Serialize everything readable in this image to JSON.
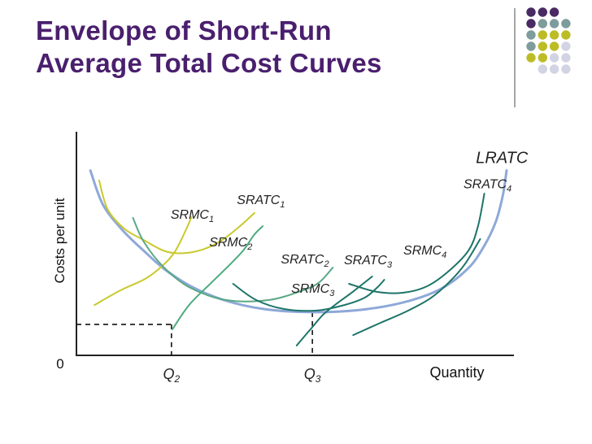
{
  "slide": {
    "title_line1": "Envelope of Short-Run",
    "title_line2": "Average Total Cost Curves"
  },
  "decoration": {
    "dot_grid_name": "dot-grid-decoration",
    "colors": {
      "purple": "#4a2a63",
      "teal": "#7e9c9c",
      "olive": "#bcbd26",
      "gray": "#d2d4e4"
    }
  },
  "chart_data": {
    "type": "line",
    "title": "",
    "ylabel": "Costs per unit",
    "xlabel": "Quantity",
    "origin_label": "0",
    "xlim": [
      0,
      100
    ],
    "ylim": [
      0,
      100
    ],
    "x_ticks": [
      {
        "main": "Q",
        "sub": "2",
        "x": 20.5
      },
      {
        "main": "Q",
        "sub": "3",
        "x": 50.9
      }
    ],
    "dashed_guides": [
      {
        "name": "q2-guide",
        "x": 20.5,
        "y": 13.9
      },
      {
        "name": "q3-guide",
        "x": 50.9,
        "y": 19.4
      }
    ],
    "series": [
      {
        "name": "LRATC",
        "color": "#8ea8d8",
        "width": 3,
        "points": [
          [
            3.0,
            83.0
          ],
          [
            5.7,
            67.7
          ],
          [
            9.9,
            56.3
          ],
          [
            14.8,
            46.4
          ],
          [
            19.0,
            38.7
          ],
          [
            24.7,
            31.0
          ],
          [
            31.8,
            24.8
          ],
          [
            40.4,
            20.8
          ],
          [
            50.9,
            19.4
          ],
          [
            61.2,
            20.4
          ],
          [
            70.4,
            23.7
          ],
          [
            78.4,
            29.6
          ],
          [
            84.5,
            39.0
          ],
          [
            88.1,
            49.6
          ],
          [
            90.5,
            60.2
          ],
          [
            92.0,
            71.9
          ],
          [
            92.8,
            83.0
          ]
        ]
      },
      {
        "name": "SRATC",
        "sub": "1",
        "color": "#c9c92e",
        "width": 2,
        "points": [
          [
            4.9,
            78.5
          ],
          [
            6.7,
            65.7
          ],
          [
            10.3,
            56.9
          ],
          [
            14.5,
            51.8
          ],
          [
            19.7,
            46.4
          ],
          [
            25.2,
            46.4
          ],
          [
            30.4,
            50.4
          ],
          [
            34.9,
            57.3
          ],
          [
            38.4,
            63.9
          ]
        ]
      },
      {
        "name": "SRMC",
        "sub": "1",
        "color": "#c9c92e",
        "width": 2,
        "points": [
          [
            3.9,
            22.6
          ],
          [
            9.5,
            29.2
          ],
          [
            14.8,
            34.3
          ],
          [
            18.5,
            40.1
          ],
          [
            21.2,
            46.4
          ],
          [
            23.6,
            56.2
          ],
          [
            24.8,
            62.0
          ]
        ]
      },
      {
        "name": "SRATC",
        "sub": "2",
        "color": "#5aa886",
        "width": 2,
        "points": [
          [
            12.2,
            61.7
          ],
          [
            14.5,
            51.1
          ],
          [
            18.9,
            39.4
          ],
          [
            24.6,
            30.3
          ],
          [
            32.4,
            24.8
          ],
          [
            41.4,
            24.8
          ],
          [
            48.9,
            29.2
          ],
          [
            52.4,
            32.8
          ],
          [
            55.3,
            39.4
          ]
        ]
      },
      {
        "name": "SRMC",
        "sub": "2",
        "color": "#4cab7d",
        "width": 2,
        "points": [
          [
            20.7,
            11.7
          ],
          [
            24.3,
            22.6
          ],
          [
            28.7,
            31.8
          ],
          [
            32.8,
            40.1
          ],
          [
            36.0,
            47.1
          ],
          [
            38.3,
            54.0
          ],
          [
            40.2,
            58.0
          ]
        ]
      },
      {
        "name": "SRATC",
        "sub": "3",
        "color": "#1d7469",
        "width": 2,
        "points": [
          [
            33.8,
            32.1
          ],
          [
            38.8,
            24.8
          ],
          [
            44.8,
            20.8
          ],
          [
            51.8,
            20.1
          ],
          [
            57.8,
            22.6
          ],
          [
            62.2,
            25.9
          ],
          [
            64.8,
            30.3
          ],
          [
            66.4,
            33.9
          ]
        ]
      },
      {
        "name": "SRMC",
        "sub": "3",
        "color": "#1d7469",
        "width": 2,
        "points": [
          [
            47.5,
            4.4
          ],
          [
            50.5,
            11.7
          ],
          [
            53.2,
            18.2
          ],
          [
            56.0,
            23.0
          ],
          [
            59.6,
            28.5
          ],
          [
            63.8,
            35.4
          ]
        ]
      },
      {
        "name": "SRATC",
        "sub": "4",
        "color": "#1d7469",
        "width": 2,
        "points": [
          [
            58.8,
            32.1
          ],
          [
            64.8,
            28.5
          ],
          [
            70.4,
            28.1
          ],
          [
            75.6,
            31.0
          ],
          [
            80.2,
            37.6
          ],
          [
            84.6,
            47.1
          ],
          [
            86.6,
            57.7
          ],
          [
            88.0,
            72.6
          ]
        ]
      },
      {
        "name": "SRMC",
        "sub": "4",
        "color": "#1d7469",
        "width": 2,
        "points": [
          [
            59.7,
            9.1
          ],
          [
            65.6,
            14.6
          ],
          [
            71.2,
            19.7
          ],
          [
            76.3,
            25.5
          ],
          [
            80.4,
            32.8
          ],
          [
            83.9,
            41.2
          ],
          [
            87.1,
            52.2
          ]
        ]
      }
    ],
    "annotations": [
      {
        "name": "LRATC",
        "sub": "",
        "x": 91.8,
        "y": 86.3,
        "size": 20,
        "anchor": "middle"
      },
      {
        "name": "SRATC",
        "sub": "4",
        "x": 88.7,
        "y": 75.0,
        "size": 16,
        "anchor": "middle"
      },
      {
        "name": "SRATC",
        "sub": "1",
        "x": 39.8,
        "y": 67.9,
        "size": 16,
        "anchor": "middle"
      },
      {
        "name": "SRMC",
        "sub": "1",
        "x": 25.0,
        "y": 61.4,
        "size": 16,
        "anchor": "middle"
      },
      {
        "name": "SRMC",
        "sub": "2",
        "x": 33.3,
        "y": 48.9,
        "size": 16,
        "anchor": "middle"
      },
      {
        "name": "SRATC",
        "sub": "2",
        "x": 49.3,
        "y": 41.2,
        "size": 16,
        "anchor": "middle"
      },
      {
        "name": "SRATC",
        "sub": "3",
        "x": 62.9,
        "y": 40.9,
        "size": 16,
        "anchor": "middle"
      },
      {
        "name": "SRMC",
        "sub": "4",
        "x": 75.2,
        "y": 45.3,
        "size": 16,
        "anchor": "middle"
      },
      {
        "name": "SRMC",
        "sub": "3",
        "x": 51.0,
        "y": 28.1,
        "size": 16,
        "anchor": "middle"
      }
    ]
  }
}
